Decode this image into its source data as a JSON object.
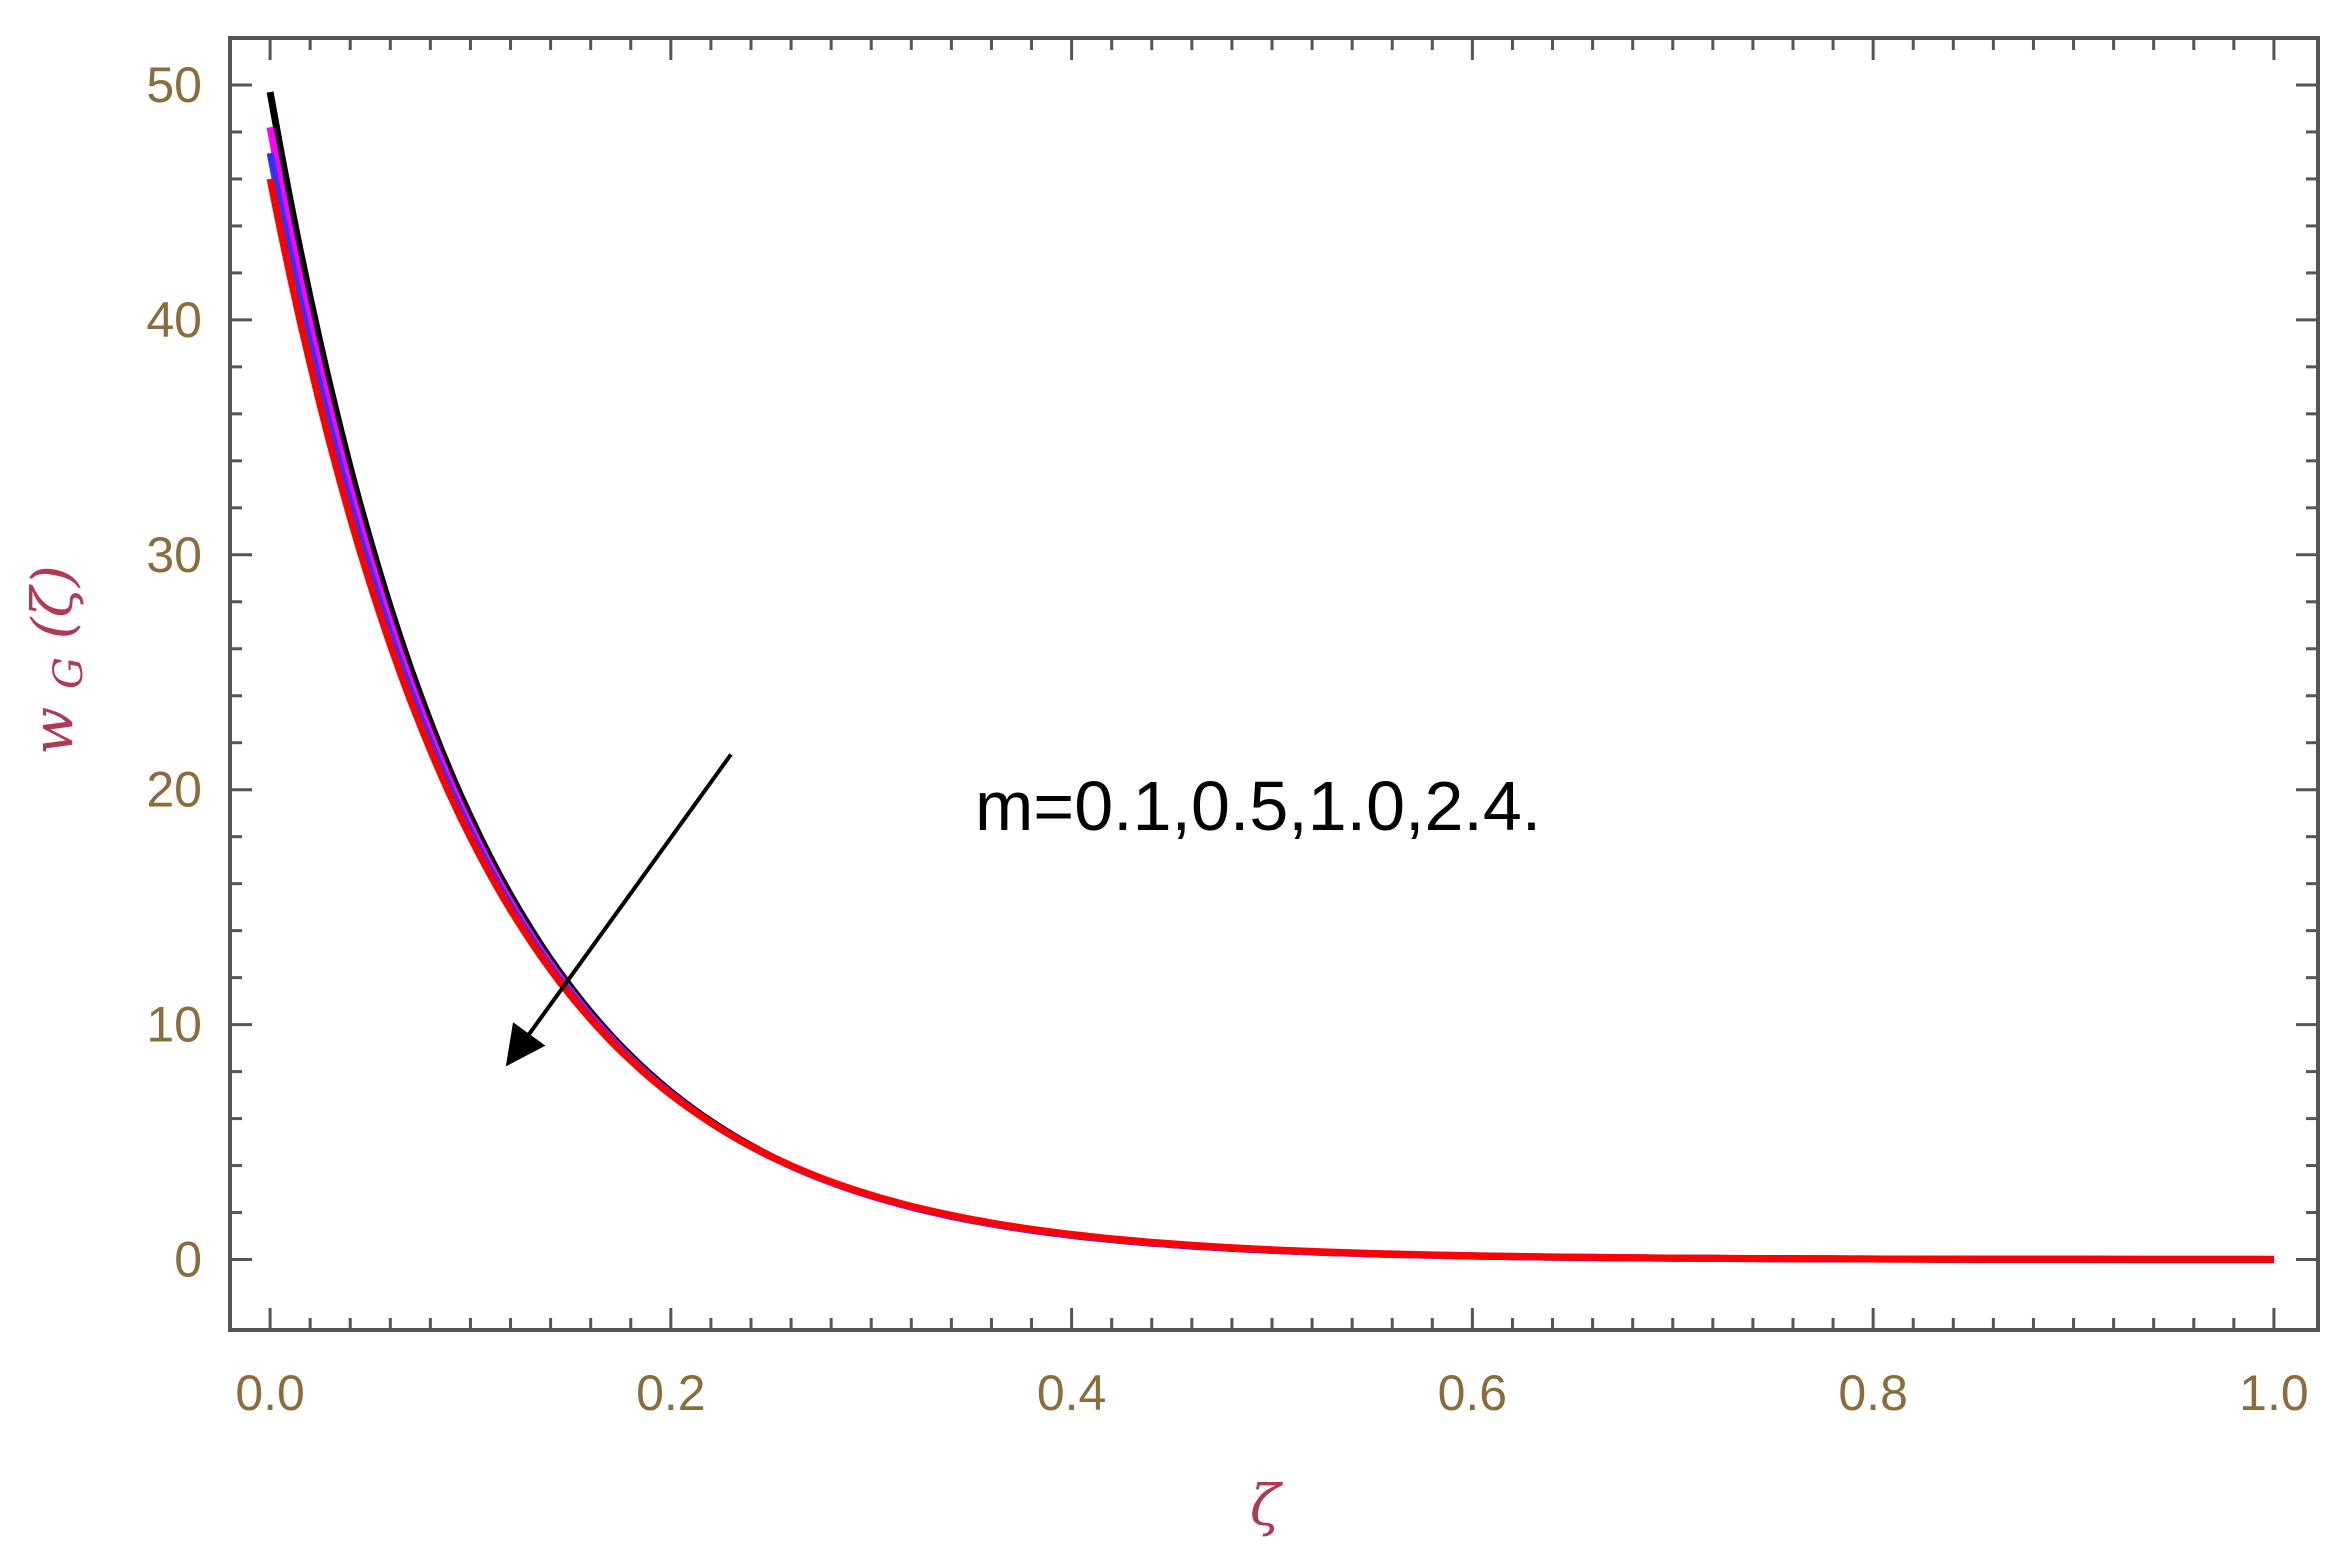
{
  "chart_data": {
    "type": "line",
    "xlabel": "ζ",
    "ylabel_base": "w",
    "ylabel_sub": "G",
    "ylabel_tail": "(ζ)",
    "xlim": [
      0.0,
      1.0
    ],
    "ylim": [
      -3,
      52
    ],
    "x_ticks": [
      "0.0",
      "0.2",
      "0.4",
      "0.6",
      "0.8",
      "1.0"
    ],
    "y_ticks": [
      "0",
      "10",
      "20",
      "30",
      "40",
      "50"
    ],
    "annotation": "m=0.1,0.5,1.0,2.4.",
    "arrow_direction": "decreasing m trend",
    "grid": false,
    "series": [
      {
        "color": "#000000",
        "y0": 49.7,
        "decay": 9.7
      },
      {
        "color": "#ff00ff",
        "y0": 48.2,
        "decay": 9.6
      },
      {
        "color": "#3333ff",
        "y0": 47.1,
        "decay": 9.5
      },
      {
        "color": "#ff0000",
        "y0": 46.0,
        "decay": 9.4
      }
    ],
    "arrow": {
      "from": [
        0.23,
        21.5
      ],
      "to": [
        0.12,
        8.5
      ]
    }
  }
}
